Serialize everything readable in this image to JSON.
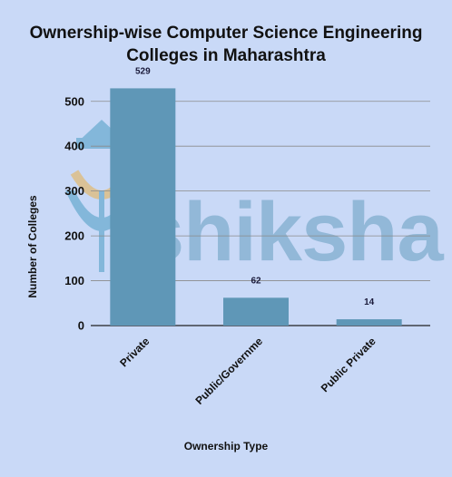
{
  "title_line1": "Ownership-wise Computer Science Engineering",
  "title_line2": "Colleges in Maharashtra",
  "watermark_text": "shiksha",
  "chart_data": {
    "type": "bar",
    "title": "Ownership-wise Computer Science Engineering Colleges in Maharashtra",
    "xlabel": "Ownership Type",
    "ylabel": "Number of Colleges",
    "categories": [
      "Private",
      "Public/Governme",
      "Public Private"
    ],
    "values": [
      529,
      62,
      14
    ],
    "data_labels": [
      "529",
      "62",
      "14"
    ],
    "ylim": [
      0,
      550
    ],
    "yticks": [
      0,
      100,
      200,
      300,
      400,
      500
    ],
    "grid": true,
    "bar_color": "#5f97b7"
  }
}
